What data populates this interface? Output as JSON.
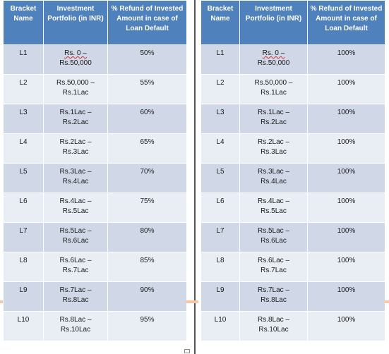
{
  "headers": [
    "Bracket Name",
    "Investment Portfolio (in INR)",
    "% Refund of Invested Amount in case of Loan Default"
  ],
  "left_table": [
    {
      "bracket": "L1",
      "portfolio": [
        "Rs. 0 –",
        "Rs.50,000"
      ],
      "refund": "50%"
    },
    {
      "bracket": "L2",
      "portfolio": [
        "Rs.50,000 –",
        "Rs.1Lac"
      ],
      "refund": "55%"
    },
    {
      "bracket": "L3",
      "portfolio": [
        "Rs.1Lac –",
        "Rs.2Lac"
      ],
      "refund": "60%"
    },
    {
      "bracket": "L4",
      "portfolio": [
        "Rs.2Lac –",
        "Rs.3Lac"
      ],
      "refund": "65%"
    },
    {
      "bracket": "L5",
      "portfolio": [
        "Rs.3Lac –",
        "Rs.4Lac"
      ],
      "refund": "70%"
    },
    {
      "bracket": "L6",
      "portfolio": [
        "Rs.4Lac –",
        "Rs.5Lac"
      ],
      "refund": "75%"
    },
    {
      "bracket": "L7",
      "portfolio": [
        "Rs.5Lac –",
        "Rs.6Lac"
      ],
      "refund": "80%"
    },
    {
      "bracket": "L8",
      "portfolio": [
        "Rs.6Lac –",
        "Rs.7Lac"
      ],
      "refund": "85%"
    },
    {
      "bracket": "L9",
      "portfolio": [
        "Rs.7Lac –",
        "Rs.8Lac"
      ],
      "refund": "90%"
    },
    {
      "bracket": "L10",
      "portfolio": [
        "Rs.8Lac –",
        "Rs.10Lac"
      ],
      "refund": "95%"
    }
  ],
  "right_table": [
    {
      "bracket": "L1",
      "portfolio": [
        "Rs. 0 –",
        "Rs.50,000"
      ],
      "refund": "100%"
    },
    {
      "bracket": "L2",
      "portfolio": [
        "Rs.50,000 –",
        "Rs.1Lac"
      ],
      "refund": "100%"
    },
    {
      "bracket": "L3",
      "portfolio": [
        "Rs.1Lac –",
        "Rs.2Lac"
      ],
      "refund": "100%"
    },
    {
      "bracket": "L4",
      "portfolio": [
        "Rs.2Lac –",
        "Rs.3Lac"
      ],
      "refund": "100%"
    },
    {
      "bracket": "L5",
      "portfolio": [
        "Rs.3Lac –",
        "Rs.4Lac"
      ],
      "refund": "100%"
    },
    {
      "bracket": "L6",
      "portfolio": [
        "Rs.4Lac –",
        "Rs.5Lac"
      ],
      "refund": "100%"
    },
    {
      "bracket": "L7",
      "portfolio": [
        "Rs.5Lac –",
        "Rs.6Lac"
      ],
      "refund": "100%"
    },
    {
      "bracket": "L8",
      "portfolio": [
        "Rs.6Lac –",
        "Rs.7Lac"
      ],
      "refund": "100%"
    },
    {
      "bracket": "L9",
      "portfolio": [
        "Rs.7Lac –",
        "Rs.8Lac"
      ],
      "refund": "100%"
    },
    {
      "bracket": "L10",
      "portfolio": [
        "Rs.8Lac –",
        "Rs.10Lac"
      ],
      "refund": "100%"
    }
  ],
  "colors": {
    "header_bg": "#4f81bd",
    "row_odd": "#d0d8e8",
    "row_even": "#e9edf4",
    "divider": "#555555"
  }
}
